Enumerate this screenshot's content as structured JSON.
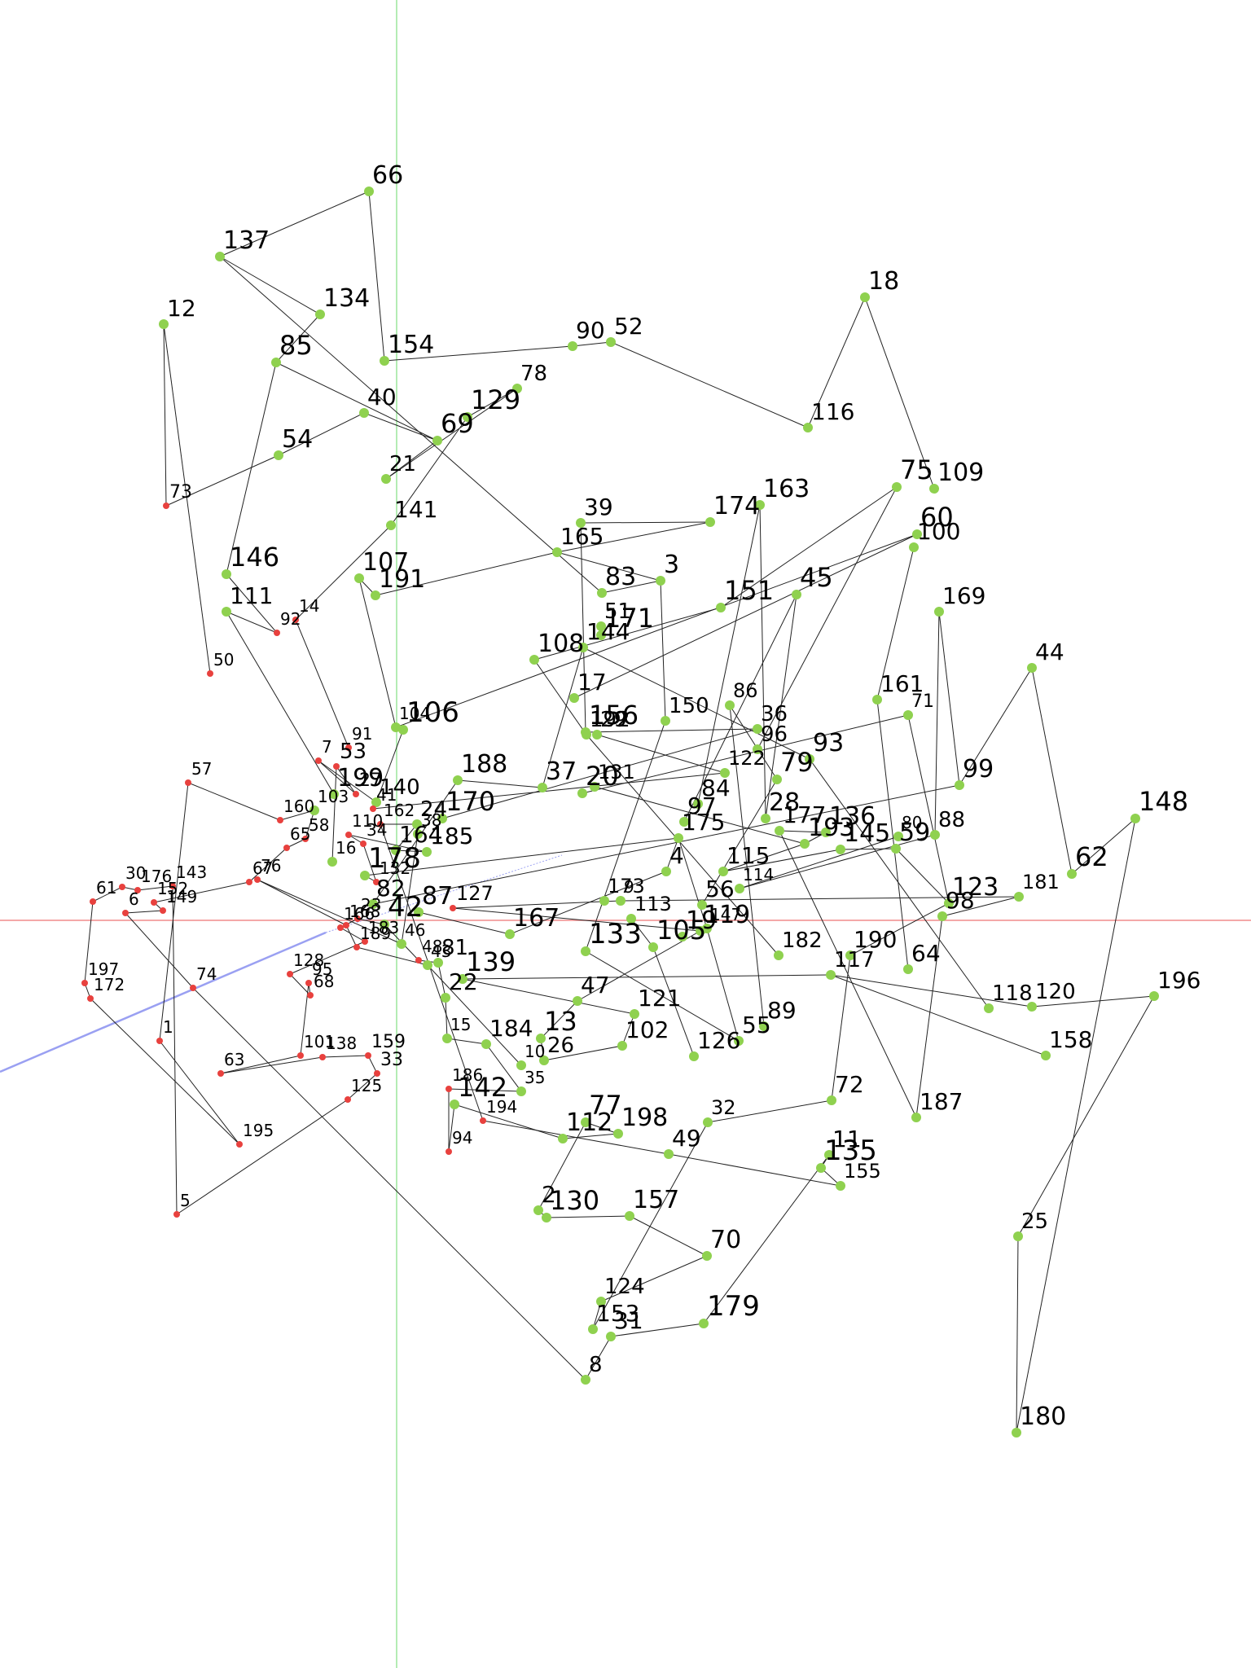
{
  "colors": {
    "background": "#ffffff",
    "edge": "#222222",
    "node_green": "#8fd14f",
    "node_red": "#e8413e",
    "label": "#000000",
    "axis_vertical": "#9be59b",
    "axis_horizontal": "#f08c8c",
    "pointer_ray": "#9aa0f2"
  },
  "nodes": [
    {
      "id": "66",
      "c": "g"
    },
    {
      "id": "137",
      "c": "g"
    },
    {
      "id": "134",
      "c": "g"
    },
    {
      "id": "12",
      "c": "g"
    },
    {
      "id": "85",
      "c": "g"
    },
    {
      "id": "154",
      "c": "g"
    },
    {
      "id": "90",
      "c": "g"
    },
    {
      "id": "52",
      "c": "g"
    },
    {
      "id": "18",
      "c": "g"
    },
    {
      "id": "40",
      "c": "g"
    },
    {
      "id": "129",
      "c": "g"
    },
    {
      "id": "78",
      "c": "g"
    },
    {
      "id": "69",
      "c": "g"
    },
    {
      "id": "54",
      "c": "g"
    },
    {
      "id": "116",
      "c": "g"
    },
    {
      "id": "21",
      "c": "g"
    },
    {
      "id": "73",
      "c": "r"
    },
    {
      "id": "75",
      "c": "g"
    },
    {
      "id": "109",
      "c": "g"
    },
    {
      "id": "39",
      "c": "g"
    },
    {
      "id": "174",
      "c": "g"
    },
    {
      "id": "163",
      "c": "g"
    },
    {
      "id": "141",
      "c": "g"
    },
    {
      "id": "60",
      "c": "g"
    },
    {
      "id": "100",
      "c": "g"
    },
    {
      "id": "165",
      "c": "g"
    },
    {
      "id": "146",
      "c": "g"
    },
    {
      "id": "107",
      "c": "g"
    },
    {
      "id": "83",
      "c": "g"
    },
    {
      "id": "3",
      "c": "g"
    },
    {
      "id": "191",
      "c": "g"
    },
    {
      "id": "151",
      "c": "g"
    },
    {
      "id": "45",
      "c": "g"
    },
    {
      "id": "111",
      "c": "g"
    },
    {
      "id": "169",
      "c": "g"
    },
    {
      "id": "92",
      "c": "r"
    },
    {
      "id": "14",
      "c": "r"
    },
    {
      "id": "51",
      "c": "g"
    },
    {
      "id": "171",
      "c": "g"
    },
    {
      "id": "108",
      "c": "g"
    },
    {
      "id": "144",
      "c": "g"
    },
    {
      "id": "44",
      "c": "g"
    },
    {
      "id": "50",
      "c": "r"
    },
    {
      "id": "17",
      "c": "g"
    },
    {
      "id": "161",
      "c": "g"
    },
    {
      "id": "86",
      "c": "g"
    },
    {
      "id": "150",
      "c": "g"
    },
    {
      "id": "71",
      "c": "g"
    },
    {
      "id": "106",
      "c": "g"
    },
    {
      "id": "36",
      "c": "g"
    },
    {
      "id": "156",
      "c": "g"
    },
    {
      "id": "104",
      "c": "g"
    },
    {
      "id": "96",
      "c": "g"
    },
    {
      "id": "192",
      "c": "g"
    },
    {
      "id": "29",
      "c": "g"
    },
    {
      "id": "93",
      "c": "g"
    },
    {
      "id": "7",
      "c": "r"
    },
    {
      "id": "91",
      "c": "r"
    },
    {
      "id": "99",
      "c": "g"
    },
    {
      "id": "57",
      "c": "r"
    },
    {
      "id": "188",
      "c": "g"
    },
    {
      "id": "53",
      "c": "r"
    },
    {
      "id": "37",
      "c": "g"
    },
    {
      "id": "20",
      "c": "g"
    },
    {
      "id": "131",
      "c": "g"
    },
    {
      "id": "79",
      "c": "g"
    },
    {
      "id": "122",
      "c": "g"
    },
    {
      "id": "199",
      "c": "g"
    },
    {
      "id": "27",
      "c": "r"
    },
    {
      "id": "140",
      "c": "g"
    },
    {
      "id": "84",
      "c": "g"
    },
    {
      "id": "148",
      "c": "g"
    },
    {
      "id": "170",
      "c": "g"
    },
    {
      "id": "180",
      "c": "g"
    },
    {
      "id": "97",
      "c": "g"
    },
    {
      "id": "28",
      "c": "g"
    },
    {
      "id": "103",
      "c": "g"
    },
    {
      "id": "41",
      "c": "r"
    },
    {
      "id": "88",
      "c": "g"
    },
    {
      "id": "160",
      "c": "r"
    },
    {
      "id": "162",
      "c": "r"
    },
    {
      "id": "24",
      "c": "g"
    },
    {
      "id": "177",
      "c": "g"
    },
    {
      "id": "136",
      "c": "g"
    },
    {
      "id": "58",
      "c": "r"
    },
    {
      "id": "110",
      "c": "r"
    },
    {
      "id": "175",
      "c": "g"
    },
    {
      "id": "193",
      "c": "g"
    },
    {
      "id": "145",
      "c": "g"
    },
    {
      "id": "59",
      "c": "g"
    },
    {
      "id": "65",
      "c": "r"
    },
    {
      "id": "34",
      "c": "r"
    },
    {
      "id": "164",
      "c": "g"
    },
    {
      "id": "185",
      "c": "g"
    },
    {
      "id": "115",
      "c": "g"
    },
    {
      "id": "67",
      "c": "r"
    },
    {
      "id": "176",
      "c": "r"
    },
    {
      "id": "143",
      "c": "r"
    },
    {
      "id": "178",
      "c": "g"
    },
    {
      "id": "4",
      "c": "g"
    },
    {
      "id": "62",
      "c": "g"
    },
    {
      "id": "181",
      "c": "g"
    },
    {
      "id": "123",
      "c": "g"
    },
    {
      "id": "132",
      "c": "r"
    },
    {
      "id": "30",
      "c": "r"
    },
    {
      "id": "173",
      "c": "g"
    },
    {
      "id": "56",
      "c": "g"
    },
    {
      "id": "152",
      "c": "r"
    },
    {
      "id": "61",
      "c": "r"
    },
    {
      "id": "6",
      "c": "r"
    },
    {
      "id": "149",
      "c": "r"
    },
    {
      "id": "82",
      "c": "g"
    },
    {
      "id": "87",
      "c": "g"
    },
    {
      "id": "127",
      "c": "r"
    },
    {
      "id": "113",
      "c": "g"
    },
    {
      "id": "98",
      "c": "g"
    },
    {
      "id": "23",
      "c": "r"
    },
    {
      "id": "166",
      "c": "r"
    },
    {
      "id": "42",
      "c": "g"
    },
    {
      "id": "167",
      "c": "g"
    },
    {
      "id": "19",
      "c": "g"
    },
    {
      "id": "119",
      "c": "g"
    },
    {
      "id": "183",
      "c": "r"
    },
    {
      "id": "133",
      "c": "g"
    },
    {
      "id": "105",
      "c": "g"
    },
    {
      "id": "182",
      "c": "g"
    },
    {
      "id": "190",
      "c": "g"
    },
    {
      "id": "48",
      "c": "r"
    },
    {
      "id": "81",
      "c": "g"
    },
    {
      "id": "64",
      "c": "g"
    },
    {
      "id": "128",
      "c": "r"
    },
    {
      "id": "139",
      "c": "g"
    },
    {
      "id": "117",
      "c": "g"
    },
    {
      "id": "95",
      "c": "r"
    },
    {
      "id": "197",
      "c": "r"
    },
    {
      "id": "74",
      "c": "r"
    },
    {
      "id": "172",
      "c": "r"
    },
    {
      "id": "68",
      "c": "r"
    },
    {
      "id": "22",
      "c": "g"
    },
    {
      "id": "47",
      "c": "g"
    },
    {
      "id": "121",
      "c": "g"
    },
    {
      "id": "118",
      "c": "g"
    },
    {
      "id": "120",
      "c": "g"
    },
    {
      "id": "196",
      "c": "g"
    },
    {
      "id": "89",
      "c": "g"
    },
    {
      "id": "55",
      "c": "g"
    },
    {
      "id": "15",
      "c": "g"
    },
    {
      "id": "184",
      "c": "g"
    },
    {
      "id": "13",
      "c": "g"
    },
    {
      "id": "1",
      "c": "r"
    },
    {
      "id": "102",
      "c": "g"
    },
    {
      "id": "26",
      "c": "g"
    },
    {
      "id": "126",
      "c": "g"
    },
    {
      "id": "158",
      "c": "g"
    },
    {
      "id": "101",
      "c": "r"
    },
    {
      "id": "138",
      "c": "r"
    },
    {
      "id": "159",
      "c": "r"
    },
    {
      "id": "63",
      "c": "r"
    },
    {
      "id": "33",
      "c": "r"
    },
    {
      "id": "186",
      "c": "r"
    },
    {
      "id": "35",
      "c": "g"
    },
    {
      "id": "125",
      "c": "r"
    },
    {
      "id": "72",
      "c": "g"
    },
    {
      "id": "142",
      "c": "g"
    },
    {
      "id": "187",
      "c": "g"
    },
    {
      "id": "194",
      "c": "r"
    },
    {
      "id": "77",
      "c": "g"
    },
    {
      "id": "32",
      "c": "g"
    },
    {
      "id": "112",
      "c": "g"
    },
    {
      "id": "198",
      "c": "g"
    },
    {
      "id": "195",
      "c": "r"
    },
    {
      "id": "94",
      "c": "r"
    },
    {
      "id": "49",
      "c": "g"
    },
    {
      "id": "11",
      "c": "g"
    },
    {
      "id": "135",
      "c": "g"
    },
    {
      "id": "155",
      "c": "g"
    },
    {
      "id": "5",
      "c": "r"
    },
    {
      "id": "2",
      "c": "g"
    },
    {
      "id": "130",
      "c": "g"
    },
    {
      "id": "157",
      "c": "g"
    },
    {
      "id": "25",
      "c": "g"
    },
    {
      "id": "70",
      "c": "g"
    },
    {
      "id": "124",
      "c": "g"
    },
    {
      "id": "179",
      "c": "g"
    },
    {
      "id": "153",
      "c": "g"
    },
    {
      "id": "31",
      "c": "g"
    },
    {
      "id": "8",
      "c": "g"
    },
    {
      "id": "9",
      "c": "g"
    },
    {
      "id": "10",
      "c": "g"
    },
    {
      "id": "16",
      "c": "g"
    },
    {
      "id": "38",
      "c": "g"
    },
    {
      "id": "43",
      "c": "g"
    },
    {
      "id": "46",
      "c": "g"
    },
    {
      "id": "76",
      "c": "r"
    },
    {
      "id": "80",
      "c": "g"
    },
    {
      "id": "114",
      "c": "g"
    },
    {
      "id": "147",
      "c": "g"
    },
    {
      "id": "168",
      "c": "r"
    },
    {
      "id": "189",
      "c": "r"
    }
  ],
  "edges": [
    [
      "66",
      "137"
    ],
    [
      "137",
      "134"
    ],
    [
      "134",
      "85"
    ],
    [
      "66",
      "154"
    ],
    [
      "154",
      "90"
    ],
    [
      "90",
      "52"
    ],
    [
      "52",
      "116"
    ],
    [
      "116",
      "18"
    ],
    [
      "18",
      "109"
    ],
    [
      "12",
      "73"
    ],
    [
      "12",
      "50"
    ],
    [
      "73",
      "54"
    ],
    [
      "54",
      "40"
    ],
    [
      "40",
      "69"
    ],
    [
      "85",
      "69"
    ],
    [
      "69",
      "21"
    ],
    [
      "21",
      "78"
    ],
    [
      "78",
      "129"
    ],
    [
      "129",
      "141"
    ],
    [
      "141",
      "14"
    ],
    [
      "14",
      "91"
    ],
    [
      "85",
      "146"
    ],
    [
      "146",
      "92"
    ],
    [
      "111",
      "92"
    ],
    [
      "111",
      "199"
    ],
    [
      "107",
      "191"
    ],
    [
      "107",
      "104"
    ],
    [
      "104",
      "60"
    ],
    [
      "191",
      "165"
    ],
    [
      "165",
      "3"
    ],
    [
      "165",
      "174"
    ],
    [
      "174",
      "39"
    ],
    [
      "3",
      "83"
    ],
    [
      "83",
      "137"
    ],
    [
      "3",
      "150"
    ],
    [
      "151",
      "75"
    ],
    [
      "151",
      "108"
    ],
    [
      "108",
      "192"
    ],
    [
      "39",
      "156"
    ],
    [
      "156",
      "36"
    ],
    [
      "36",
      "170"
    ],
    [
      "45",
      "97"
    ],
    [
      "45",
      "28"
    ],
    [
      "163",
      "28"
    ],
    [
      "163",
      "84"
    ],
    [
      "75",
      "96"
    ],
    [
      "60",
      "17"
    ],
    [
      "100",
      "161"
    ],
    [
      "161",
      "64"
    ],
    [
      "169",
      "88"
    ],
    [
      "169",
      "99"
    ],
    [
      "44",
      "99"
    ],
    [
      "44",
      "62"
    ],
    [
      "99",
      "82"
    ],
    [
      "148",
      "62"
    ],
    [
      "148",
      "180"
    ],
    [
      "71",
      "20"
    ],
    [
      "71",
      "123"
    ],
    [
      "93",
      "144"
    ],
    [
      "93",
      "118"
    ],
    [
      "79",
      "56"
    ],
    [
      "86",
      "79"
    ],
    [
      "86",
      "89"
    ],
    [
      "29",
      "122"
    ],
    [
      "122",
      "41"
    ],
    [
      "192",
      "182"
    ],
    [
      "131",
      "193"
    ],
    [
      "37",
      "144"
    ],
    [
      "37",
      "188"
    ],
    [
      "188",
      "82"
    ],
    [
      "106",
      "140"
    ],
    [
      "177",
      "136"
    ],
    [
      "136",
      "193"
    ],
    [
      "193",
      "115"
    ],
    [
      "115",
      "145"
    ],
    [
      "145",
      "59"
    ],
    [
      "59",
      "123"
    ],
    [
      "123",
      "190"
    ],
    [
      "175",
      "178"
    ],
    [
      "175",
      "4"
    ],
    [
      "4",
      "167"
    ],
    [
      "167",
      "87"
    ],
    [
      "113",
      "105"
    ],
    [
      "105",
      "126"
    ],
    [
      "133",
      "55"
    ],
    [
      "119",
      "47"
    ],
    [
      "47",
      "13"
    ],
    [
      "13",
      "26"
    ],
    [
      "26",
      "102"
    ],
    [
      "102",
      "121"
    ],
    [
      "121",
      "139"
    ],
    [
      "139",
      "117"
    ],
    [
      "117",
      "120"
    ],
    [
      "120",
      "196"
    ],
    [
      "196",
      "25"
    ],
    [
      "25",
      "180"
    ],
    [
      "158",
      "117"
    ],
    [
      "190",
      "72"
    ],
    [
      "72",
      "32"
    ],
    [
      "32",
      "153"
    ],
    [
      "153",
      "124"
    ],
    [
      "124",
      "70"
    ],
    [
      "70",
      "157"
    ],
    [
      "157",
      "130"
    ],
    [
      "130",
      "2"
    ],
    [
      "2",
      "77"
    ],
    [
      "77",
      "198"
    ],
    [
      "198",
      "112"
    ],
    [
      "112",
      "142"
    ],
    [
      "142",
      "94"
    ],
    [
      "94",
      "186"
    ],
    [
      "186",
      "35"
    ],
    [
      "35",
      "184"
    ],
    [
      "184",
      "15"
    ],
    [
      "15",
      "22"
    ],
    [
      "22",
      "81"
    ],
    [
      "81",
      "48"
    ],
    [
      "48",
      "42"
    ],
    [
      "42",
      "23"
    ],
    [
      "23",
      "166"
    ],
    [
      "166",
      "183"
    ],
    [
      "183",
      "128"
    ],
    [
      "128",
      "68"
    ],
    [
      "68",
      "95"
    ],
    [
      "95",
      "101"
    ],
    [
      "101",
      "63"
    ],
    [
      "63",
      "138"
    ],
    [
      "138",
      "159"
    ],
    [
      "159",
      "33"
    ],
    [
      "33",
      "125"
    ],
    [
      "125",
      "5"
    ],
    [
      "5",
      "143"
    ],
    [
      "143",
      "176"
    ],
    [
      "176",
      "30"
    ],
    [
      "30",
      "61"
    ],
    [
      "61",
      "197"
    ],
    [
      "197",
      "172"
    ],
    [
      "172",
      "195"
    ],
    [
      "195",
      "1"
    ],
    [
      "1",
      "57"
    ],
    [
      "57",
      "160"
    ],
    [
      "160",
      "103"
    ],
    [
      "103",
      "58"
    ],
    [
      "58",
      "65"
    ],
    [
      "65",
      "67"
    ],
    [
      "67",
      "152"
    ],
    [
      "152",
      "149"
    ],
    [
      "149",
      "6"
    ],
    [
      "6",
      "74"
    ],
    [
      "74",
      "8"
    ],
    [
      "8",
      "31"
    ],
    [
      "31",
      "179"
    ],
    [
      "179",
      "11"
    ],
    [
      "11",
      "135"
    ],
    [
      "135",
      "155"
    ],
    [
      "155",
      "49"
    ],
    [
      "49",
      "194"
    ],
    [
      "194",
      "162"
    ],
    [
      "162",
      "24"
    ],
    [
      "24",
      "164"
    ],
    [
      "164",
      "185"
    ],
    [
      "185",
      "110"
    ],
    [
      "110",
      "34"
    ],
    [
      "34",
      "132"
    ],
    [
      "132",
      "178"
    ],
    [
      "127",
      "119"
    ],
    [
      "127",
      "9"
    ],
    [
      "9",
      "181"
    ],
    [
      "181",
      "98"
    ],
    [
      "98",
      "187"
    ],
    [
      "187",
      "177"
    ],
    [
      "147",
      "55"
    ],
    [
      "147",
      "175"
    ],
    [
      "114",
      "88"
    ],
    [
      "114",
      "80"
    ],
    [
      "10",
      "43"
    ],
    [
      "43",
      "189"
    ],
    [
      "189",
      "168"
    ],
    [
      "168",
      "76"
    ],
    [
      "76",
      "46"
    ],
    [
      "46",
      "38"
    ],
    [
      "16",
      "53"
    ],
    [
      "53",
      "27"
    ],
    [
      "27",
      "7"
    ],
    [
      "7",
      "140"
    ],
    [
      "150",
      "133"
    ]
  ]
}
